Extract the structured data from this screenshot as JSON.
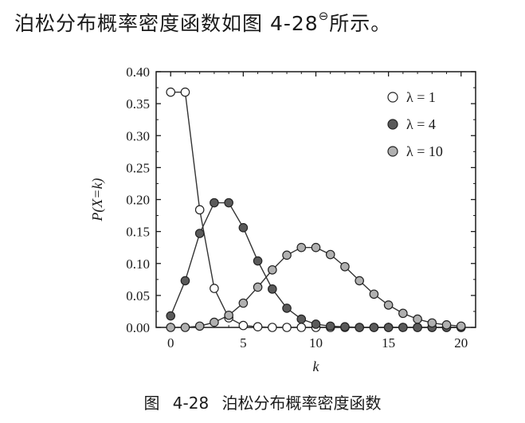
{
  "intro": {
    "text": "泊松分布概率密度函数如图 4-28",
    "footnote_mark": "⊖",
    "suffix": "所示。"
  },
  "caption": "图 4-28   泊松分布概率密度函数",
  "chart_data": {
    "type": "line",
    "title": "",
    "xlabel": "k",
    "ylabel": "P(X=k)",
    "xlim": [
      -1,
      21
    ],
    "ylim": [
      0,
      0.4
    ],
    "xticks": [
      0,
      5,
      10,
      15,
      20
    ],
    "yticks": [
      0.0,
      0.05,
      0.1,
      0.15,
      0.2,
      0.25,
      0.3,
      0.35,
      0.4
    ],
    "ytick_labels": [
      "0.00",
      "0.05",
      "0.10",
      "0.15",
      "0.20",
      "0.25",
      "0.30",
      "0.35",
      "0.40"
    ],
    "legend_position": "top-right",
    "grid": false,
    "x": [
      0,
      1,
      2,
      3,
      4,
      5,
      6,
      7,
      8,
      9,
      10,
      11,
      12,
      13,
      14,
      15,
      16,
      17,
      18,
      19,
      20
    ],
    "series": [
      {
        "name": "λ = 1",
        "marker_fill": "#ffffff",
        "values": [
          0.368,
          0.368,
          0.184,
          0.061,
          0.015,
          0.003,
          0.001,
          0.0,
          0.0,
          0.0,
          0.0,
          0.0,
          0.0,
          0.0,
          0.0,
          0.0,
          0.0,
          0.0,
          0.0,
          0.0,
          0.0
        ]
      },
      {
        "name": "λ = 4",
        "marker_fill": "#5a5a5a",
        "values": [
          0.018,
          0.073,
          0.147,
          0.195,
          0.195,
          0.156,
          0.104,
          0.06,
          0.03,
          0.013,
          0.005,
          0.002,
          0.001,
          0.0,
          0.0,
          0.0,
          0.0,
          0.0,
          0.0,
          0.0,
          0.0
        ]
      },
      {
        "name": "λ = 10",
        "marker_fill": "#b0b0b0",
        "values": [
          0.0,
          0.0,
          0.002,
          0.008,
          0.019,
          0.038,
          0.063,
          0.09,
          0.113,
          0.125,
          0.125,
          0.114,
          0.095,
          0.073,
          0.052,
          0.035,
          0.022,
          0.013,
          0.007,
          0.004,
          0.002
        ]
      }
    ]
  }
}
